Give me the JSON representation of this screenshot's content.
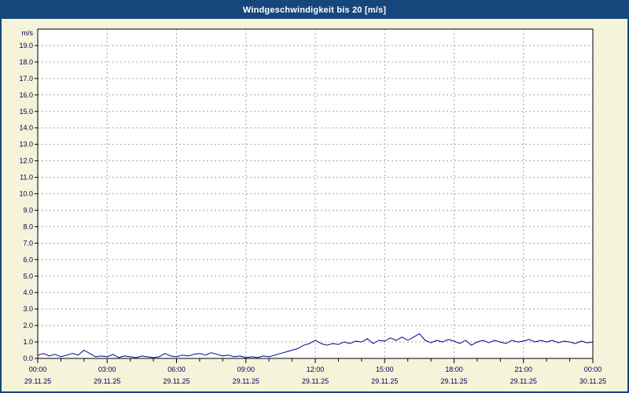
{
  "header": {
    "title": "Windgeschwindigkeit bis 20 [m/s]"
  },
  "colors": {
    "title_bar": "#16477C",
    "title_text": "#FFFFFF",
    "background": "#F6F3DB",
    "plot_bg": "#FFFFFF",
    "plot_border": "#000000",
    "grid": "#A6A6A6",
    "line": "#00008B",
    "axis_text": "#000050"
  },
  "chart_data": {
    "type": "line",
    "title": "Windgeschwindigkeit bis 20 [m/s]",
    "xlabel": "",
    "ylabel": "m/s",
    "ylim": [
      0,
      20
    ],
    "y_tick_step": 1.0,
    "y_tick_labels": [
      "0.0",
      "1.0",
      "2.0",
      "3.0",
      "4.0",
      "5.0",
      "6.0",
      "7.0",
      "8.0",
      "9.0",
      "10.0",
      "11.0",
      "12.0",
      "13.0",
      "14.0",
      "15.0",
      "16.0",
      "17.0",
      "18.0",
      "19.0"
    ],
    "x_range_hours": [
      0,
      24
    ],
    "x_ticks": [
      {
        "hour": 0,
        "time": "00:00",
        "date": "29.11.25"
      },
      {
        "hour": 3,
        "time": "03:00",
        "date": "29.11.25"
      },
      {
        "hour": 6,
        "time": "06:00",
        "date": "29.11.25"
      },
      {
        "hour": 9,
        "time": "09:00",
        "date": "29.11.25"
      },
      {
        "hour": 12,
        "time": "12:00",
        "date": "29.11.25"
      },
      {
        "hour": 15,
        "time": "15:00",
        "date": "29.11.25"
      },
      {
        "hour": 18,
        "time": "18:00",
        "date": "29.11.25"
      },
      {
        "hour": 21,
        "time": "21:00",
        "date": "29.11.25"
      },
      {
        "hour": 24,
        "time": "00:00",
        "date": "30.11.25"
      }
    ],
    "grid": true,
    "legend": false,
    "series": [
      {
        "name": "Windgeschwindigkeit",
        "x_start_hour": 0,
        "x_step_hours": 0.25,
        "values": [
          0.2,
          0.3,
          0.15,
          0.25,
          0.1,
          0.2,
          0.3,
          0.2,
          0.5,
          0.3,
          0.1,
          0.15,
          0.1,
          0.25,
          0.05,
          0.15,
          0.1,
          0.05,
          0.15,
          0.1,
          0.05,
          0.1,
          0.3,
          0.15,
          0.1,
          0.2,
          0.15,
          0.25,
          0.3,
          0.2,
          0.35,
          0.25,
          0.15,
          0.2,
          0.1,
          0.15,
          0.05,
          0.1,
          0.05,
          0.15,
          0.1,
          0.2,
          0.3,
          0.4,
          0.5,
          0.6,
          0.8,
          0.9,
          1.1,
          0.9,
          0.8,
          0.9,
          0.85,
          1.0,
          0.9,
          1.05,
          1.0,
          1.2,
          0.9,
          1.1,
          1.05,
          1.25,
          1.1,
          1.3,
          1.1,
          1.3,
          1.5,
          1.1,
          0.95,
          1.1,
          1.0,
          1.15,
          1.05,
          0.9,
          1.1,
          0.8,
          1.0,
          1.1,
          0.95,
          1.1,
          1.0,
          0.9,
          1.1,
          1.0,
          1.05,
          1.15,
          1.0,
          1.1,
          1.0,
          1.1,
          0.95,
          1.05,
          1.0,
          0.9,
          1.05,
          0.95,
          1.0
        ]
      }
    ]
  }
}
